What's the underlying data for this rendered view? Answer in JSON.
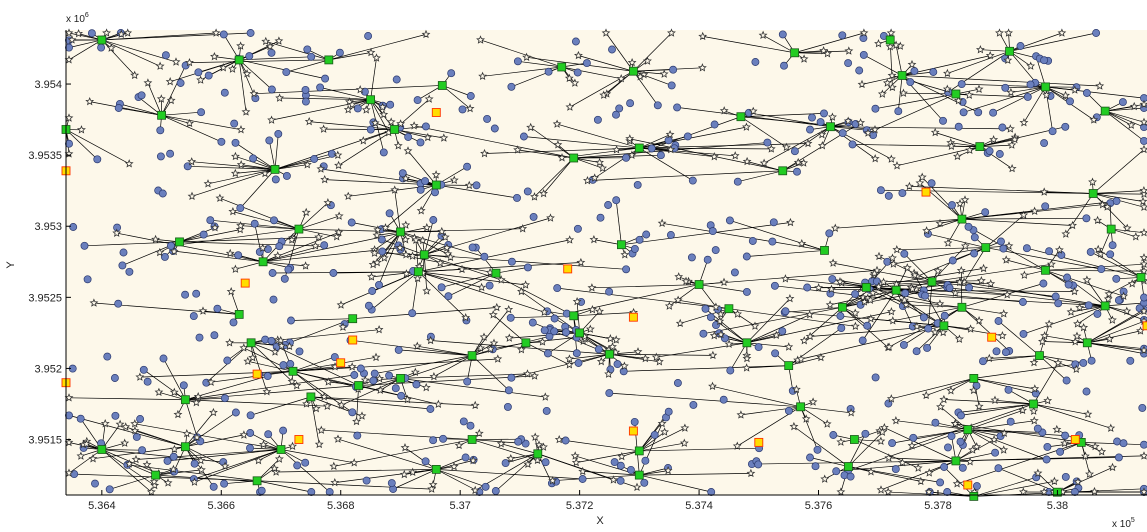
{
  "chart_data": {
    "type": "scatter",
    "title": "",
    "xlabel": "X",
    "ylabel": "Y",
    "x_multiplier": "x 10",
    "x_multiplier_exp": "5",
    "y_multiplier": "x 10",
    "y_multiplier_exp": "6",
    "xlim": [
      5.3634,
      5.3815
    ],
    "ylim": [
      3.95111,
      3.95438
    ],
    "x_ticks": [
      5.364,
      5.366,
      5.368,
      5.37,
      5.372,
      5.374,
      5.376,
      5.378,
      5.38
    ],
    "x_tick_labels": [
      "5.364",
      "5.366",
      "5.368",
      "5.37",
      "5.372",
      "5.374",
      "5.376",
      "5.378",
      "5.38"
    ],
    "y_ticks": [
      3.9515,
      3.952,
      3.9525,
      3.953,
      3.9535,
      3.954
    ],
    "y_tick_labels": [
      "3.9515",
      "3.952",
      "3.9525",
      "3.953",
      "3.9535",
      "3.954"
    ],
    "grid": false,
    "legend": false,
    "colors": {
      "background": "#fdf8ea",
      "hub_fill": "#22cc22",
      "hub_edge": "#1a5a1a",
      "candidate_fill": "#ffdd00",
      "candidate_edge": "#ff3300",
      "circle_fill": "#6a7fbd",
      "circle_edge": "#2c3a6e",
      "star": "#333333",
      "line": "#000000"
    },
    "series": [
      {
        "marker": "square-green",
        "points": [
          [
            5.364,
            3.95431
          ],
          [
            5.3663,
            3.95417
          ],
          [
            5.3678,
            3.95417
          ],
          [
            5.3685,
            3.95389
          ],
          [
            5.3697,
            3.95399
          ],
          [
            5.3717,
            3.95412
          ],
          [
            5.3729,
            3.95409
          ],
          [
            5.3756,
            3.95422
          ],
          [
            5.3772,
            3.95431
          ],
          [
            5.3792,
            3.95423
          ],
          [
            5.365,
            3.95378
          ],
          [
            5.3634,
            3.95368
          ],
          [
            5.3669,
            3.9534
          ],
          [
            5.3689,
            3.95368
          ],
          [
            5.3696,
            3.95329
          ],
          [
            5.3719,
            3.95348
          ],
          [
            5.373,
            3.95355
          ],
          [
            5.3747,
            3.95377
          ],
          [
            5.3754,
            3.95339
          ],
          [
            5.3762,
            3.9537
          ],
          [
            5.3774,
            3.95406
          ],
          [
            5.3783,
            3.95393
          ],
          [
            5.3787,
            3.95356
          ],
          [
            5.3798,
            3.95398
          ],
          [
            5.3808,
            3.95381
          ],
          [
            5.3653,
            3.95289
          ],
          [
            5.3667,
            3.95275
          ],
          [
            5.3673,
            3.95298
          ],
          [
            5.369,
            3.95296
          ],
          [
            5.3694,
            3.9528
          ],
          [
            5.3693,
            3.95268
          ],
          [
            5.3706,
            3.95267
          ],
          [
            5.3727,
            3.95287
          ],
          [
            5.3761,
            3.95283
          ],
          [
            5.3779,
            3.95261
          ],
          [
            5.3784,
            3.95305
          ],
          [
            5.3788,
            3.95285
          ],
          [
            5.3798,
            3.95269
          ],
          [
            5.3806,
            3.95323
          ],
          [
            5.3809,
            3.95298
          ],
          [
            5.3663,
            3.95238
          ],
          [
            5.3682,
            3.95235
          ],
          [
            5.3719,
            3.95237
          ],
          [
            5.374,
            3.95259
          ],
          [
            5.3745,
            3.95242
          ],
          [
            5.3764,
            3.95243
          ],
          [
            5.3773,
            3.95255
          ],
          [
            5.3784,
            3.95243
          ],
          [
            5.3808,
            3.95244
          ],
          [
            5.3814,
            3.95264
          ],
          [
            5.3665,
            3.95218
          ],
          [
            5.3672,
            3.95198
          ],
          [
            5.3683,
            3.95188
          ],
          [
            5.3702,
            3.95209
          ],
          [
            5.3711,
            3.95218
          ],
          [
            5.372,
            3.95225
          ],
          [
            5.3725,
            3.9521
          ],
          [
            5.3748,
            3.95218
          ],
          [
            5.3755,
            3.95202
          ],
          [
            5.3768,
            3.95257
          ],
          [
            5.3781,
            3.9523
          ],
          [
            5.3786,
            3.95193
          ],
          [
            5.3797,
            3.95209
          ],
          [
            5.3805,
            3.95218
          ],
          [
            5.3654,
            3.95178
          ],
          [
            5.3675,
            3.9518
          ],
          [
            5.369,
            3.95193
          ],
          [
            5.3702,
            3.9515
          ],
          [
            5.3713,
            3.9514
          ],
          [
            5.373,
            3.95142
          ],
          [
            5.3757,
            3.95173
          ],
          [
            5.3766,
            3.9515
          ],
          [
            5.3785,
            3.95157
          ],
          [
            5.3796,
            3.95175
          ],
          [
            5.3804,
            3.95148
          ],
          [
            5.364,
            3.95143
          ],
          [
            5.3654,
            3.95145
          ],
          [
            5.367,
            3.95143
          ],
          [
            5.3696,
            3.95129
          ],
          [
            5.373,
            3.95125
          ],
          [
            5.3666,
            3.95121
          ],
          [
            5.3649,
            3.95125
          ],
          [
            5.3783,
            3.95135
          ],
          [
            5.38,
            3.95113
          ],
          [
            5.3765,
            3.95131
          ],
          [
            5.3786,
            3.9511
          ]
        ]
      },
      {
        "marker": "square-yellow",
        "points": [
          [
            5.3634,
            3.95339
          ],
          [
            5.3696,
            3.9538
          ],
          [
            5.3718,
            3.9527
          ],
          [
            5.3664,
            3.9526
          ],
          [
            5.3729,
            3.95236
          ],
          [
            5.3682,
            3.9522
          ],
          [
            5.368,
            3.95204
          ],
          [
            5.3666,
            3.95196
          ],
          [
            5.3634,
            3.9519
          ],
          [
            5.3789,
            3.95222
          ],
          [
            5.3778,
            3.95324
          ],
          [
            5.3815,
            3.9523
          ],
          [
            5.3673,
            3.9515
          ],
          [
            5.3729,
            3.95156
          ],
          [
            5.375,
            3.95148
          ],
          [
            5.3785,
            3.95118
          ],
          [
            5.3803,
            3.9515
          ]
        ]
      }
    ]
  }
}
